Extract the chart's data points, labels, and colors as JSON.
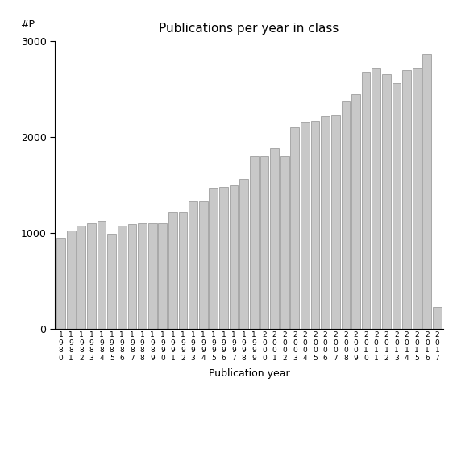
{
  "title": "Publications per year in class",
  "xlabel": "Publication year",
  "ylabel": "#P",
  "bar_color": "#c8c8c8",
  "edge_color": "#909090",
  "ylim": [
    0,
    3000
  ],
  "yticks": [
    0,
    1000,
    2000,
    3000
  ],
  "categories": [
    "1980",
    "1981",
    "1982",
    "1983",
    "1984",
    "1985",
    "1986",
    "1987",
    "1988",
    "1989",
    "1990",
    "1991",
    "1992",
    "1993",
    "1994",
    "1995",
    "1996",
    "1997",
    "1998",
    "1999",
    "2000",
    "2001",
    "2002",
    "2003",
    "2004",
    "2005",
    "2006",
    "2007",
    "2008",
    "2009",
    "2010",
    "2011",
    "2012",
    "2013",
    "2014",
    "2015",
    "2016",
    "2017"
  ],
  "values": [
    950,
    1030,
    1080,
    1100,
    1130,
    990,
    1080,
    1090,
    1100,
    1100,
    1100,
    1220,
    1220,
    1330,
    1330,
    1470,
    1480,
    1500,
    1560,
    1800,
    1800,
    1880,
    1800,
    2100,
    2160,
    2170,
    2220,
    2230,
    2380,
    2450,
    2680,
    2720,
    2660,
    2560,
    2700,
    2720,
    2870,
    230
  ],
  "figsize": [
    5.67,
    5.67
  ],
  "dpi": 100
}
